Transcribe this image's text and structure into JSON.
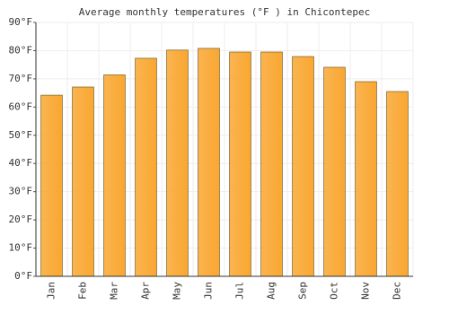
{
  "chart_data": {
    "type": "bar",
    "title": "Average monthly temperatures (°F ) in Chicontepec",
    "categories": [
      "Jan",
      "Feb",
      "Mar",
      "Apr",
      "May",
      "Jun",
      "Jul",
      "Aug",
      "Sep",
      "Oct",
      "Nov",
      "Dec"
    ],
    "values": [
      64.2,
      67.1,
      71.4,
      77.3,
      80.2,
      80.8,
      79.5,
      79.5,
      77.9,
      74.1,
      69,
      65.5
    ],
    "color": "#f9a731",
    "ylim": [
      0,
      90
    ],
    "yticks": [
      {
        "value": 0,
        "label": "0°F"
      },
      {
        "value": 10,
        "label": "10°F"
      },
      {
        "value": 20,
        "label": "20°F"
      },
      {
        "value": 30,
        "label": "30°F"
      },
      {
        "value": 40,
        "label": "40°F"
      },
      {
        "value": 50,
        "label": "50°F"
      },
      {
        "value": 60,
        "label": "60°F"
      },
      {
        "value": 70,
        "label": "70°F"
      },
      {
        "value": 80,
        "label": "80°F"
      },
      {
        "value": 90,
        "label": "90°F"
      }
    ],
    "grid": true
  }
}
